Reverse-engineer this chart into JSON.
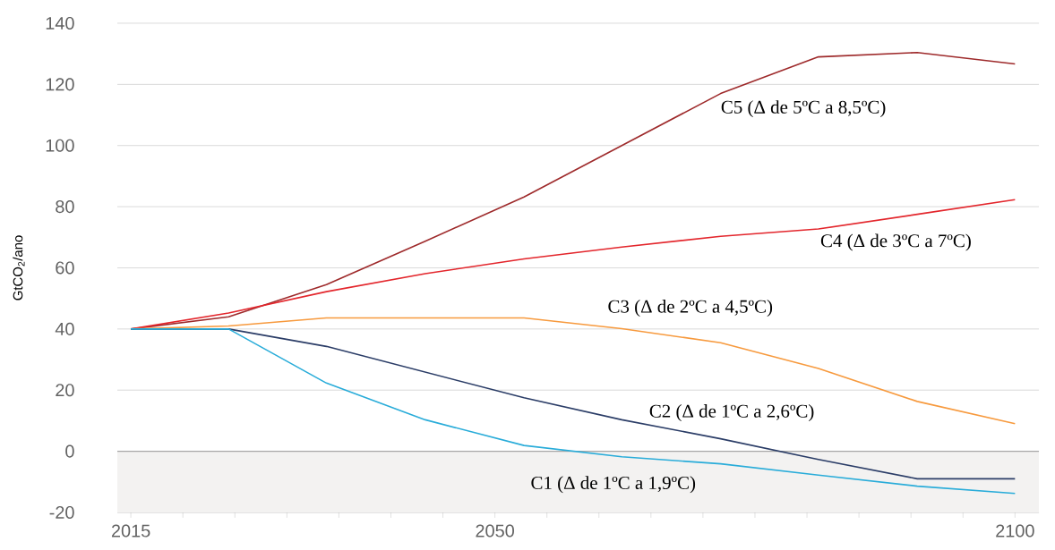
{
  "chart_data": {
    "type": "line",
    "ylabel": "GtCO$_{2}$/ano",
    "x": [
      2015,
      2024.4,
      2033.8,
      2043.3,
      2052.8,
      2062.2,
      2071.7,
      2081.1,
      2090.6,
      2100
    ],
    "series": [
      {
        "name": "C5 (Δ de 5ºC a 8,5ºC)",
        "color": "#9e2a2b",
        "values": [
          40,
          44,
          54.5,
          68.7,
          83.2,
          100,
          117,
          129,
          130.4,
          126.7
        ]
      },
      {
        "name": "C4 (Δ de 3ºC a 7ºC)",
        "color": "#e3262c",
        "values": [
          40,
          45.2,
          52.2,
          58.1,
          62.9,
          66.8,
          70.3,
          72.7,
          77.5,
          82.3
        ]
      },
      {
        "name": "C3 (Δ de 2ºC a 4,5ºC)",
        "color": "#f79a3e",
        "values": [
          40,
          41,
          43.6,
          43.6,
          43.6,
          40.1,
          35.5,
          27.1,
          16.3,
          9
        ]
      },
      {
        "name": "C2 (Δ de 1ºC a 2,6ºC)",
        "color": "#2b3d67",
        "values": [
          40,
          40,
          34.3,
          25.9,
          17.5,
          10.3,
          4.1,
          -2.7,
          -9,
          -9
        ]
      },
      {
        "name": "C1 (Δ de 1ºC a 1,9ºC)",
        "color": "#29acd9",
        "values": [
          40,
          40,
          22.3,
          10.3,
          1.9,
          -1.8,
          -4.1,
          -7.8,
          -11.4,
          -13.8
        ]
      }
    ],
    "xlim": [
      2013.7,
      2102.3
    ],
    "ylim": [
      -20,
      140
    ],
    "xticks": [
      2015,
      {
        "value": 2020,
        "label": null
      },
      {
        "value": 2025,
        "label": null
      },
      {
        "value": 2030,
        "label": null
      },
      {
        "value": 2035,
        "label": null
      },
      {
        "value": 2040,
        "label": null
      },
      {
        "value": 2045,
        "label": null
      },
      2050,
      {
        "value": 2055,
        "label": null
      },
      {
        "value": 2060,
        "label": null
      },
      {
        "value": 2065,
        "label": null
      },
      {
        "value": 2070,
        "label": null
      },
      {
        "value": 2075,
        "label": null
      },
      {
        "value": 2080,
        "label": null
      },
      {
        "value": 2085,
        "label": null
      },
      {
        "value": 2090,
        "label": null
      },
      {
        "value": 2095,
        "label": null
      },
      2100
    ],
    "yticks": [
      -20,
      0,
      20,
      40,
      60,
      80,
      100,
      120,
      140
    ],
    "bands": [
      {
        "axis": "y",
        "from": -20,
        "to": 0,
        "color": "#f3f2f1"
      }
    ],
    "ref_lines": [
      {
        "axis": "y",
        "value": 0,
        "color": "#a6a6a6"
      }
    ],
    "grid": "y",
    "legend": false,
    "marker": "none",
    "line_style": "solid"
  }
}
